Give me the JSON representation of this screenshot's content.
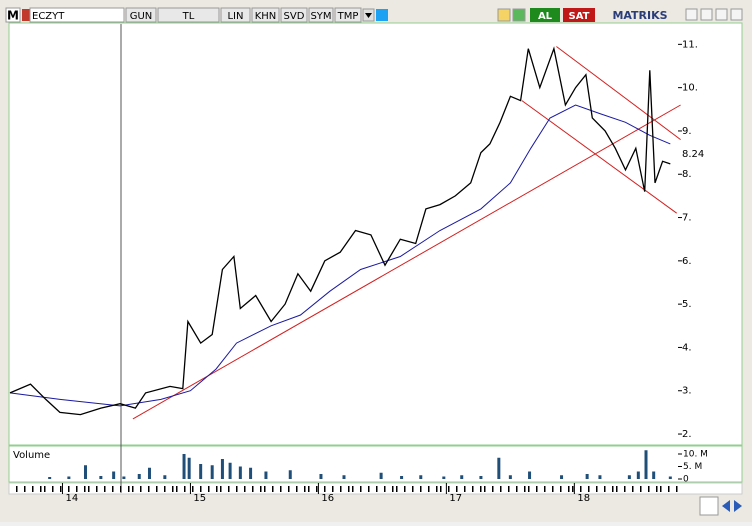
{
  "toolbar": {
    "logo": "M",
    "symbol": "ECZYT",
    "buttons": [
      "GUN",
      "TL",
      "LIN",
      "KHN",
      "SVD",
      "SYM",
      "TMP"
    ],
    "buy": "AL",
    "sell": "SAT",
    "brand": "MATRIKS"
  },
  "chart_data": {
    "type": "line",
    "x": [
      13.59,
      13.75,
      13.87,
      13.98,
      14.14,
      14.3,
      14.45,
      14.57,
      14.65,
      14.84,
      14.94,
      14.98,
      15.08,
      15.17,
      15.25,
      15.34,
      15.39,
      15.51,
      15.63,
      15.74,
      15.84,
      15.94,
      16.05,
      16.17,
      16.29,
      16.41,
      16.52,
      16.64,
      16.76,
      16.84,
      16.95,
      17.07,
      17.19,
      17.27,
      17.34,
      17.42,
      17.5,
      17.58,
      17.64,
      17.73,
      17.84,
      17.93,
      18.01,
      18.09,
      18.14,
      18.24,
      18.32,
      18.4,
      18.48,
      18.55,
      18.59,
      18.63,
      18.69,
      18.75
    ],
    "series": [
      {
        "color": "#000000",
        "values": [
          2.95,
          3.15,
          2.8,
          2.5,
          2.45,
          2.6,
          2.7,
          2.6,
          2.95,
          3.1,
          3.05,
          4.6,
          4.1,
          4.3,
          5.8,
          6.1,
          4.9,
          5.2,
          4.6,
          5.0,
          5.7,
          5.3,
          6.0,
          6.2,
          6.7,
          6.6,
          5.9,
          6.5,
          6.4,
          7.2,
          7.3,
          7.5,
          7.8,
          8.5,
          8.7,
          9.2,
          9.8,
          9.7,
          10.9,
          10.0,
          10.9,
          9.6,
          10.0,
          10.3,
          9.3,
          9.0,
          8.6,
          8.1,
          8.6,
          7.6,
          10.4,
          7.8,
          8.3,
          8.24
        ]
      }
    ],
    "average": {
      "color": "#1a1aa0",
      "x": [
        13.59,
        13.98,
        14.45,
        14.77,
        15.0,
        15.2,
        15.36,
        15.63,
        15.86,
        16.09,
        16.33,
        16.64,
        16.95,
        17.27,
        17.5,
        17.66,
        17.81,
        18.01,
        18.2,
        18.4,
        18.59,
        18.75
      ],
      "values": [
        2.95,
        2.8,
        2.65,
        2.8,
        3.0,
        3.5,
        4.1,
        4.5,
        4.75,
        5.3,
        5.8,
        6.1,
        6.7,
        7.2,
        7.8,
        8.6,
        9.3,
        9.6,
        9.4,
        9.2,
        8.9,
        8.7
      ]
    },
    "trendlines": {
      "color": "#d42020",
      "lines": [
        {
          "x": [
            14.55,
            18.83
          ],
          "values": [
            2.35,
            9.6
          ]
        },
        {
          "x": [
            17.86,
            18.83
          ],
          "values": [
            10.95,
            8.8
          ]
        },
        {
          "x": [
            17.59,
            18.8
          ],
          "values": [
            9.7,
            7.1
          ]
        }
      ]
    },
    "last_price": 8.24,
    "xlim": [
      13.59,
      18.81
    ],
    "xticks": [
      14,
      15,
      16,
      17,
      18
    ],
    "ylim": [
      1.77,
      11.47
    ],
    "yticks": [
      {
        "value": 2,
        "label": "2."
      },
      {
        "value": 3,
        "label": "3."
      },
      {
        "value": 4,
        "label": "4."
      },
      {
        "value": 5,
        "label": "5."
      },
      {
        "value": 6,
        "label": "6."
      },
      {
        "value": 7,
        "label": "7."
      },
      {
        "value": 8,
        "label": "8."
      },
      {
        "value": 9,
        "label": "9."
      },
      {
        "value": 10,
        "label": "10."
      },
      {
        "value": 11,
        "label": "11."
      }
    ],
    "volume": {
      "title": "Volume",
      "color": "#1f4e79",
      "x": [
        13.9,
        14.05,
        14.18,
        14.3,
        14.4,
        14.48,
        14.6,
        14.68,
        14.8,
        14.95,
        14.99,
        15.08,
        15.17,
        15.25,
        15.31,
        15.39,
        15.47,
        15.59,
        15.78,
        16.02,
        16.2,
        16.49,
        16.65,
        16.8,
        16.98,
        17.12,
        17.27,
        17.41,
        17.5,
        17.65,
        17.9,
        18.1,
        18.2,
        18.43,
        18.5,
        18.56,
        18.62,
        18.75
      ],
      "values": [
        0.8,
        1.0,
        5.5,
        1.2,
        3.0,
        1.0,
        2.0,
        4.5,
        1.5,
        10.0,
        8.5,
        6.0,
        5.5,
        8.0,
        6.5,
        5.0,
        4.5,
        3.0,
        3.5,
        2.0,
        1.5,
        2.5,
        1.2,
        1.5,
        1.0,
        1.5,
        1.2,
        8.5,
        1.5,
        3.0,
        1.5,
        2.0,
        1.5,
        1.5,
        3.0,
        11.5,
        3.0,
        1.0
      ],
      "ylim": [
        0,
        12.4
      ],
      "yticks": [
        {
          "value": 0,
          "label": "0"
        },
        {
          "value": 5,
          "label": "5. M"
        },
        {
          "value": 10,
          "label": "10. M"
        }
      ]
    }
  }
}
